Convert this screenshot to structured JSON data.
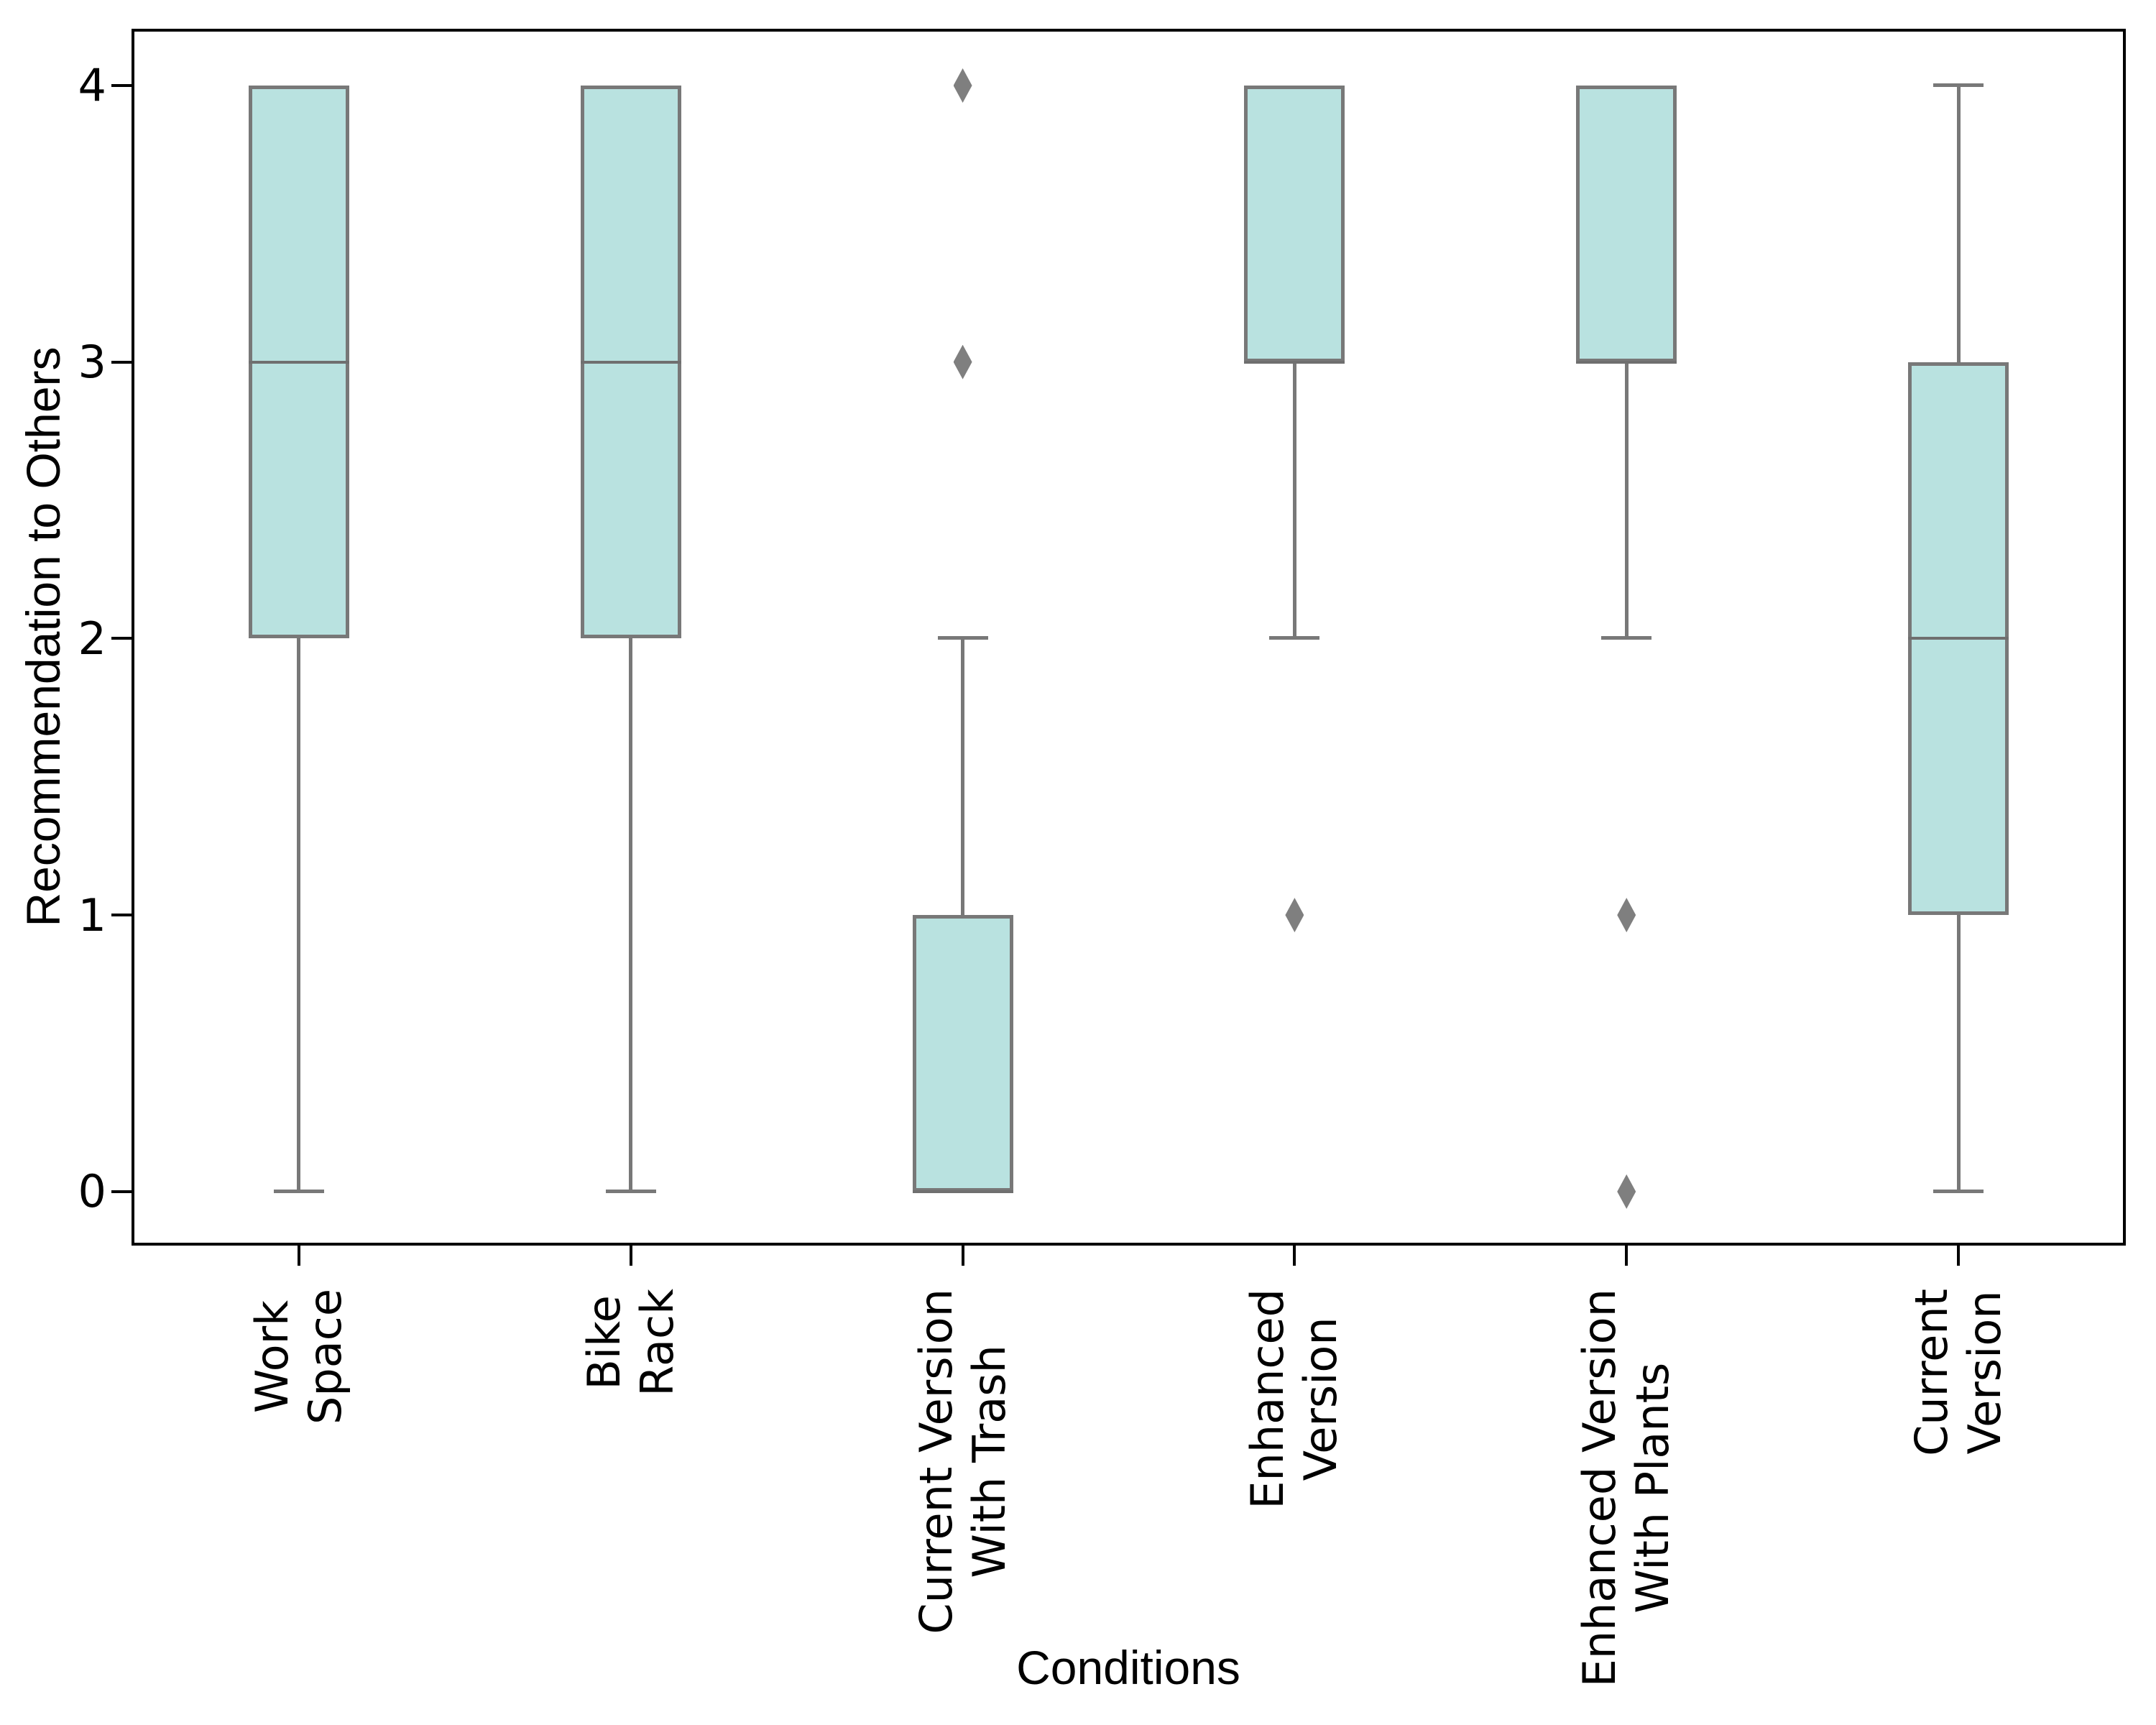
{
  "page": {
    "background": "#ffffff",
    "title": ""
  },
  "chart_data": {
    "type": "box",
    "title": "",
    "xlabel": "Conditions",
    "ylabel": "Recommendation to Others",
    "ylim": [
      -0.19,
      4.2
    ],
    "yticks": [
      "0",
      "1",
      "2",
      "3",
      "4"
    ],
    "grid": false,
    "legend": null,
    "categories": [
      "Work\nSpace",
      "Bike\nRack",
      "Current Version\nWith Trash",
      "Enhanced\nVersion",
      "Enhanced Version\nWith Plants",
      "Current\nVersion"
    ],
    "boxes": [
      {
        "label": "Work\nSpace",
        "q1": 2,
        "median": 3,
        "q3": 4,
        "whisker_low": 0,
        "whisker_high": 4,
        "outliers": []
      },
      {
        "label": "Bike\nRack",
        "q1": 2,
        "median": 3,
        "q3": 4,
        "whisker_low": 0,
        "whisker_high": 4,
        "outliers": []
      },
      {
        "label": "Current Version\nWith Trash",
        "q1": 0,
        "median": 0,
        "q3": 1,
        "whisker_low": 0,
        "whisker_high": 2,
        "outliers": [
          4,
          3
        ]
      },
      {
        "label": "Enhanced\nVersion",
        "q1": 3,
        "median": 3,
        "q3": 4,
        "whisker_low": 2,
        "whisker_high": 4,
        "outliers": [
          1
        ]
      },
      {
        "label": "Enhanced Version\nWith Plants",
        "q1": 3,
        "median": 3,
        "q3": 4,
        "whisker_low": 2,
        "whisker_high": 4,
        "outliers": [
          1,
          0
        ]
      },
      {
        "label": "Current\nVersion",
        "q1": 1,
        "median": 2,
        "q3": 3,
        "whisker_low": 0,
        "whisker_high": 4,
        "outliers": []
      }
    ],
    "colors": {
      "box_fill": "#b9e2e0",
      "box_edge": "#787878",
      "median": "#6f6f6f",
      "whisker": "#787878",
      "flier": "#7f7f7f",
      "spine": "#000000",
      "text": "#000000",
      "background": "#ffffff"
    }
  }
}
